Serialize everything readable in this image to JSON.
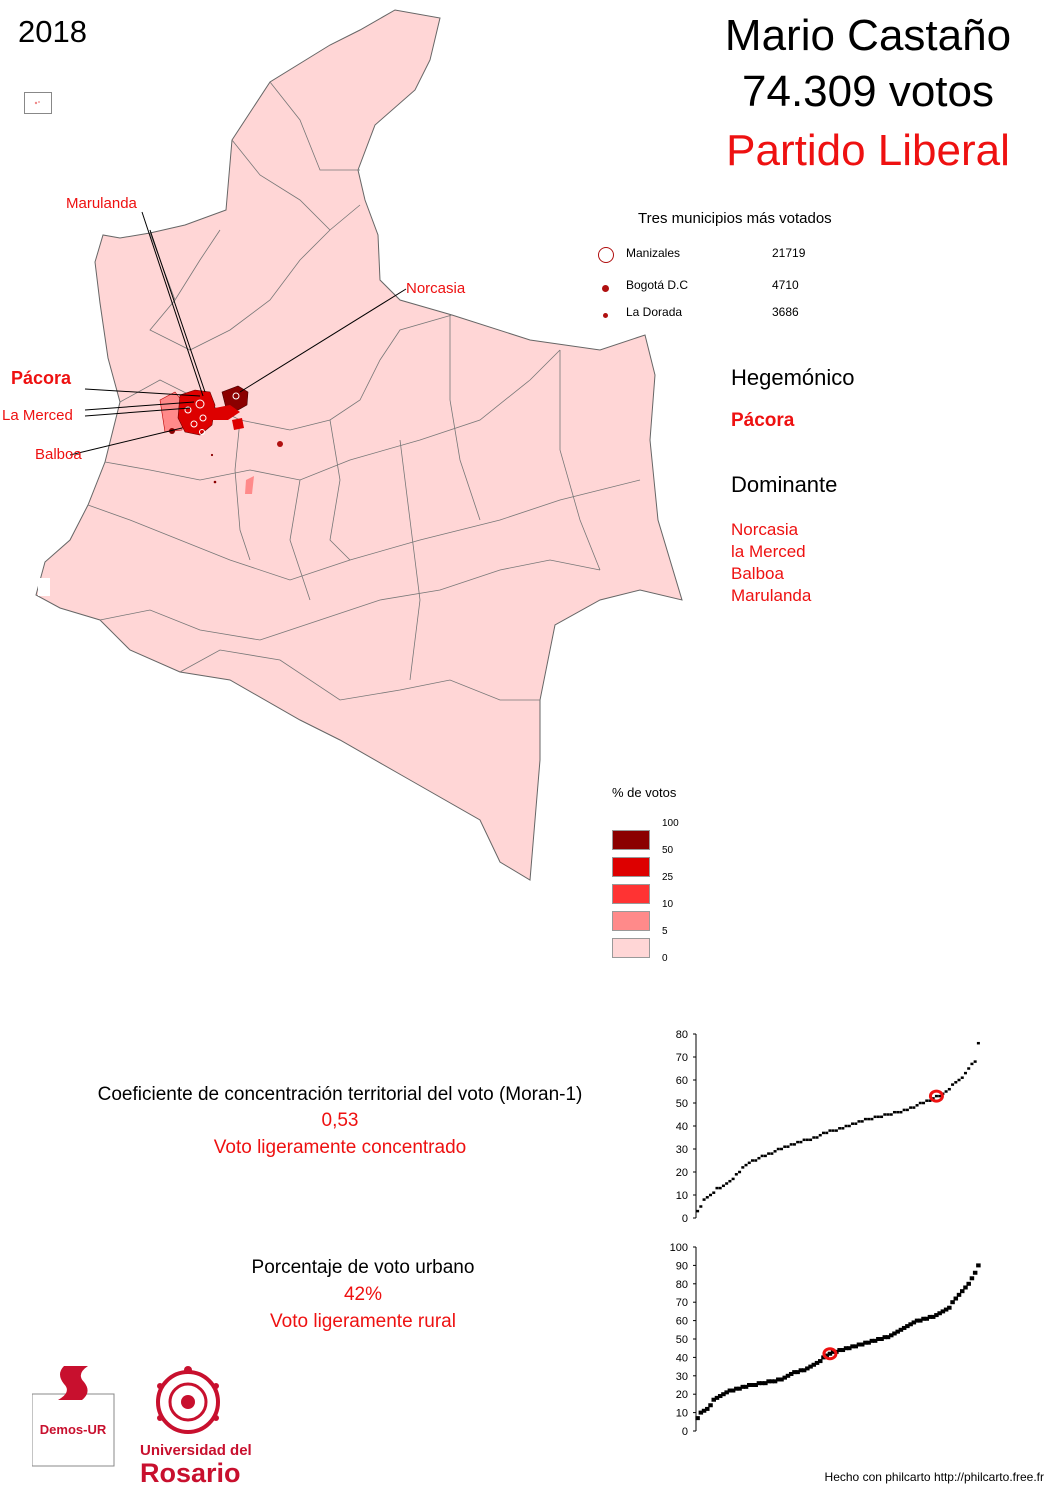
{
  "year": "2018",
  "candidate": {
    "name": "Mario Castaño",
    "votes": "74.309 votos",
    "party": "Partido Liberal"
  },
  "map": {
    "callouts": [
      {
        "id": "marulanda",
        "label": "Marulanda",
        "bold": false
      },
      {
        "id": "norcasia",
        "label": "Norcasia",
        "bold": false
      },
      {
        "id": "pacora",
        "label": "Pácora",
        "bold": true
      },
      {
        "id": "la-merced",
        "label": "La Merced",
        "bold": false
      },
      {
        "id": "balboa",
        "label": "Balboa",
        "bold": false
      }
    ]
  },
  "top_municipalities": {
    "title": "Tres municipios más votados",
    "items": [
      {
        "name": "Manizales",
        "votes": "21719",
        "symbol": "circle-large-open"
      },
      {
        "name": "Bogotá D.C",
        "votes": "4710",
        "symbol": "dot-medium"
      },
      {
        "name": "La Dorada",
        "votes": "3686",
        "symbol": "dot-small"
      }
    ]
  },
  "hegemonic": {
    "heading": "Hegemónico",
    "items": [
      "Pácora"
    ]
  },
  "dominant": {
    "heading": "Dominante",
    "items": [
      "Norcasia",
      "la Merced",
      "Balboa",
      "Marulanda"
    ]
  },
  "legend": {
    "title": "% de votos",
    "breaks": [
      "100",
      "50",
      "25",
      "10",
      "5",
      "0"
    ],
    "colors": [
      "#8b0000",
      "#dd0000",
      "#ff3333",
      "#ff8a8a",
      "#ffd6d6"
    ]
  },
  "moran": {
    "title": "Coeficiente de concentración territorial del voto (Moran-1)",
    "value": "0,53",
    "description": "Voto ligeramente concentrado"
  },
  "urban": {
    "title": "Porcentaje de voto urbano",
    "value": "42%",
    "description": "Voto ligeramente rural"
  },
  "chart_data": [
    {
      "type": "scatter",
      "title": "",
      "xlabel": "",
      "ylabel": "",
      "ylim": [
        0,
        80
      ],
      "yticks": [
        0,
        10,
        20,
        30,
        40,
        50,
        60,
        70,
        80
      ],
      "grid": false,
      "values": [
        3,
        5,
        8,
        9,
        10,
        11,
        13,
        13,
        14,
        15,
        16,
        17,
        19,
        20,
        22,
        23,
        24,
        25,
        25,
        26,
        27,
        27,
        28,
        28,
        29,
        30,
        30,
        31,
        31,
        32,
        32,
        33,
        33,
        34,
        34,
        34,
        35,
        35,
        36,
        37,
        37,
        38,
        38,
        38,
        39,
        39,
        40,
        40,
        41,
        41,
        42,
        42,
        43,
        43,
        43,
        44,
        44,
        44,
        45,
        45,
        45,
        46,
        46,
        46,
        47,
        47,
        48,
        48,
        49,
        50,
        50,
        51,
        51,
        52,
        53,
        53,
        54,
        55,
        56,
        58,
        59,
        60,
        61,
        63,
        65,
        67,
        68,
        76
      ],
      "highlight": 53
    },
    {
      "type": "scatter",
      "title": "",
      "xlabel": "",
      "ylabel": "",
      "ylim": [
        0,
        100
      ],
      "yticks": [
        0,
        10,
        20,
        30,
        40,
        50,
        60,
        70,
        80,
        90,
        100
      ],
      "grid": false,
      "values": [
        7,
        10,
        11,
        12,
        14,
        17,
        18,
        19,
        20,
        21,
        22,
        22,
        23,
        23,
        24,
        24,
        25,
        25,
        25,
        26,
        26,
        26,
        27,
        27,
        27,
        28,
        28,
        29,
        30,
        31,
        32,
        32,
        33,
        33,
        34,
        35,
        36,
        37,
        38,
        40,
        41,
        42,
        43,
        43,
        44,
        44,
        45,
        45,
        46,
        46,
        47,
        47,
        48,
        48,
        49,
        49,
        50,
        50,
        51,
        51,
        52,
        53,
        54,
        55,
        56,
        57,
        58,
        59,
        60,
        60,
        61,
        61,
        62,
        62,
        63,
        64,
        65,
        66,
        67,
        70,
        72,
        74,
        76,
        78,
        80,
        83,
        86,
        90
      ],
      "highlight": 42
    }
  ],
  "logos": {
    "demos": "Demos-UR",
    "university_line1": "Universidad del",
    "university_line2": "Rosario"
  },
  "credit": "Hecho con philcarto http://philcarto.free.fr"
}
